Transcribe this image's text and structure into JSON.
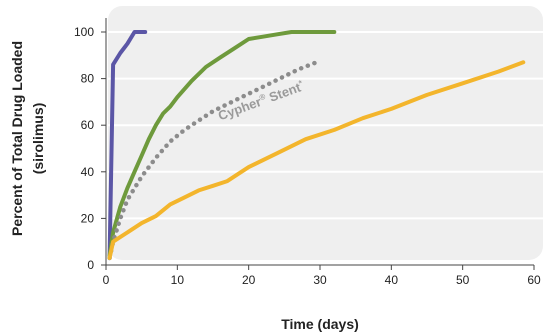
{
  "chart_data": {
    "type": "line",
    "title": "",
    "xlabel": "Time (days)",
    "ylabel": "Percent of Total Drug Loaded",
    "ylabel_sub": "(sirolimus)",
    "xlim": [
      0,
      60
    ],
    "ylim": [
      0,
      100
    ],
    "xticks": [
      0,
      10,
      20,
      30,
      40,
      50,
      60
    ],
    "yticks": [
      0,
      20,
      40,
      60,
      80,
      100
    ],
    "grid": true,
    "plot_background": "#efefef",
    "series": [
      {
        "color": "#5b56a6",
        "style": "solid",
        "x": [
          0.5,
          1,
          2,
          3,
          4,
          5.5
        ],
        "y": [
          4,
          86,
          91,
          95,
          100,
          100
        ]
      },
      {
        "color": "#6e9a3c",
        "style": "solid",
        "x": [
          0.5,
          1,
          2,
          3,
          4,
          5,
          6,
          7,
          8,
          9,
          10,
          12,
          14,
          16,
          18,
          20,
          22,
          24,
          26,
          28,
          30,
          32
        ],
        "y": [
          4,
          14,
          25,
          33,
          40,
          47,
          54,
          60,
          65,
          68,
          72,
          79,
          85,
          89,
          93,
          97,
          98,
          99,
          100,
          100,
          100,
          100
        ]
      },
      {
        "color": "#8c8c8c",
        "style": "dotted",
        "x": [
          0.5,
          1,
          2,
          3,
          5,
          7,
          9,
          11,
          13,
          15,
          17,
          19,
          21,
          23,
          25,
          27,
          29.5
        ],
        "y": [
          3,
          10,
          20,
          28,
          38,
          46,
          53,
          58,
          62,
          66,
          69,
          72,
          75,
          78,
          81,
          84,
          87
        ]
      },
      {
        "color": "#f3b52c",
        "style": "solid",
        "x": [
          0.5,
          1,
          3,
          5,
          7,
          9,
          11,
          13,
          15,
          17,
          20,
          24,
          28,
          32,
          36,
          40,
          45,
          50,
          55,
          58.5
        ],
        "y": [
          3,
          10,
          14,
          18,
          21,
          26,
          29,
          32,
          34,
          36,
          42,
          48,
          54,
          58,
          63,
          67,
          73,
          78,
          83,
          87
        ]
      }
    ],
    "annotations": [
      {
        "text": "Cypher",
        "superscript": "®",
        "text_after": " Stent",
        "superscript_after": "*",
        "x": 16,
        "y": 62
      }
    ]
  }
}
